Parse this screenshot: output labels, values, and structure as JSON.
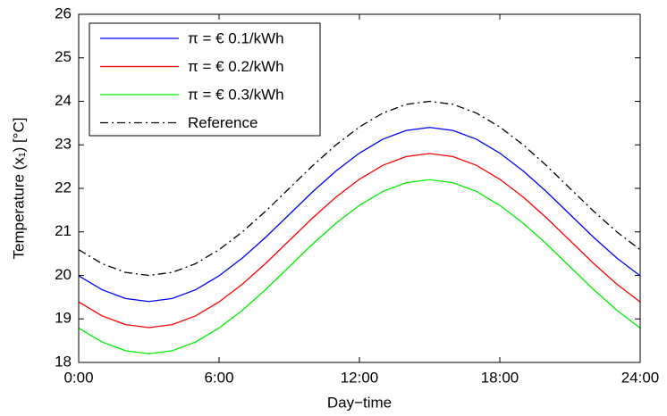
{
  "chart_data": {
    "type": "line",
    "xlabel": "Day−time",
    "ylabel": "Temperature (x₁) [°C]",
    "x": [
      0,
      1,
      2,
      3,
      4,
      5,
      6,
      7,
      8,
      9,
      10,
      11,
      12,
      13,
      14,
      15,
      16,
      17,
      18,
      19,
      20,
      21,
      22,
      23,
      24
    ],
    "series": [
      {
        "name": "π = € 0.1/kWh",
        "color": "#0000ff",
        "linestyle": "solid",
        "values": [
          19.99,
          19.67,
          19.47,
          19.4,
          19.47,
          19.67,
          19.99,
          20.4,
          20.88,
          21.4,
          21.92,
          22.4,
          22.81,
          23.13,
          23.33,
          23.4,
          23.33,
          23.13,
          22.81,
          22.4,
          21.92,
          21.4,
          20.88,
          20.4,
          19.99
        ]
      },
      {
        "name": "π = € 0.2/kWh",
        "color": "#ff0000",
        "linestyle": "solid",
        "values": [
          19.39,
          19.07,
          18.87,
          18.8,
          18.87,
          19.07,
          19.39,
          19.8,
          20.28,
          20.8,
          21.32,
          21.8,
          22.21,
          22.53,
          22.73,
          22.8,
          22.73,
          22.53,
          22.21,
          21.8,
          21.32,
          20.8,
          20.28,
          19.8,
          19.39
        ]
      },
      {
        "name": "π = € 0.3/kWh",
        "color": "#00ee00",
        "linestyle": "solid",
        "values": [
          18.79,
          18.47,
          18.27,
          18.2,
          18.27,
          18.47,
          18.79,
          19.2,
          19.68,
          20.2,
          20.72,
          21.2,
          21.61,
          21.93,
          22.13,
          22.2,
          22.13,
          21.93,
          21.61,
          21.2,
          20.72,
          20.2,
          19.68,
          19.2,
          18.79
        ]
      },
      {
        "name": "Reference",
        "color": "#000000",
        "linestyle": "dashdot",
        "values": [
          20.59,
          20.27,
          20.07,
          20.0,
          20.07,
          20.27,
          20.59,
          21.0,
          21.48,
          22.0,
          22.52,
          23.0,
          23.41,
          23.73,
          23.93,
          24.0,
          23.93,
          23.73,
          23.41,
          23.0,
          22.52,
          22.0,
          21.48,
          21.0,
          20.59
        ]
      }
    ],
    "xlim": [
      0,
      24
    ],
    "xticks": [
      {
        "value": 0,
        "label": "0:00"
      },
      {
        "value": 6,
        "label": "6:00"
      },
      {
        "value": 12,
        "label": "12:00"
      },
      {
        "value": 18,
        "label": "18:00"
      },
      {
        "value": 24,
        "label": "24:00"
      }
    ],
    "ylim": [
      18,
      26
    ],
    "yticks": [
      18,
      19,
      20,
      21,
      22,
      23,
      24,
      25,
      26
    ],
    "grid": false,
    "legend": "upper-left"
  }
}
